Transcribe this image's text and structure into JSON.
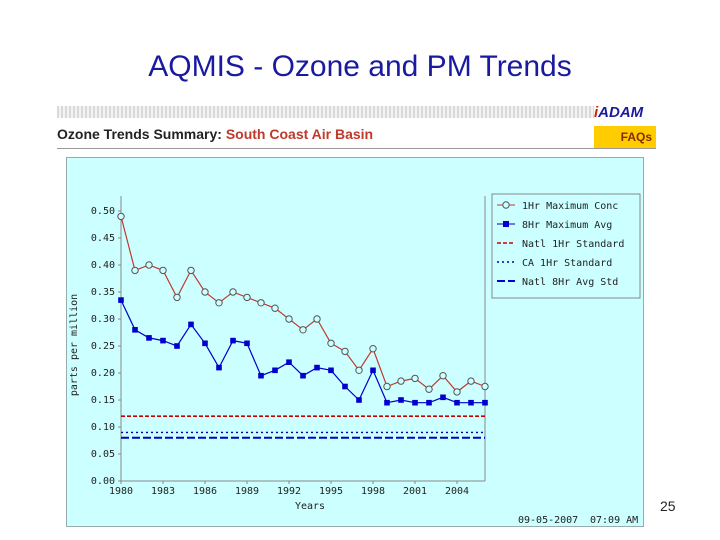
{
  "slide": {
    "title": "AQMIS - Ozone and PM Trends",
    "page_number": "25"
  },
  "header": {
    "brand_i": "i",
    "brand_rest": "ADAM",
    "title_prefix": "Ozone Trends Summary:",
    "region": "South Coast Air Basin",
    "faqs_label": "FAQs"
  },
  "footer": {
    "date": "09-05-2007",
    "time": "07:09 AM"
  },
  "colors": {
    "max_conc": "#c0392b",
    "max_avg": "#0000cc",
    "panel_bg": "#ccffff"
  },
  "chart_data": {
    "type": "line",
    "xlabel": "Years",
    "ylabel": "parts per million",
    "xlim": [
      1980,
      2006
    ],
    "ylim": [
      0.0,
      0.5
    ],
    "x_ticks": [
      "1980",
      "1983",
      "1986",
      "1989",
      "1992",
      "1995",
      "1998",
      "2001",
      "2004"
    ],
    "y_ticks": [
      "0.00",
      "0.05",
      "0.10",
      "0.15",
      "0.20",
      "0.25",
      "0.30",
      "0.35",
      "0.40",
      "0.45",
      "0.50"
    ],
    "x": [
      1980,
      1981,
      1982,
      1983,
      1984,
      1985,
      1986,
      1987,
      1988,
      1989,
      1990,
      1991,
      1992,
      1993,
      1994,
      1995,
      1996,
      1997,
      1998,
      1999,
      2000,
      2001,
      2002,
      2003,
      2004,
      2005,
      2006
    ],
    "series": [
      {
        "name": "1Hr Maximum Conc",
        "marker": "open-circle",
        "values": [
          0.49,
          0.39,
          0.4,
          0.39,
          0.34,
          0.39,
          0.35,
          0.33,
          0.35,
          0.34,
          0.33,
          0.32,
          0.3,
          0.28,
          0.3,
          0.255,
          0.24,
          0.205,
          0.245,
          0.175,
          0.185,
          0.19,
          0.17,
          0.195,
          0.165,
          0.185,
          0.175
        ]
      },
      {
        "name": "8Hr Maximum Avg",
        "marker": "filled-square",
        "values": [
          0.335,
          0.28,
          0.265,
          0.26,
          0.25,
          0.29,
          0.255,
          0.21,
          0.26,
          0.255,
          0.195,
          0.205,
          0.22,
          0.195,
          0.21,
          0.205,
          0.175,
          0.15,
          0.205,
          0.145,
          0.15,
          0.145,
          0.145,
          0.155,
          0.145,
          0.145,
          0.145
        ]
      },
      {
        "name": "Natl 1Hr Standard",
        "style": "dashed-red",
        "values_const": 0.12
      },
      {
        "name": "CA 1Hr Standard",
        "style": "dotted-blue",
        "values_const": 0.09
      },
      {
        "name": "Natl 8Hr Avg Std",
        "style": "dashed-blue",
        "values_const": 0.08
      }
    ],
    "legend_position": "top-right"
  }
}
